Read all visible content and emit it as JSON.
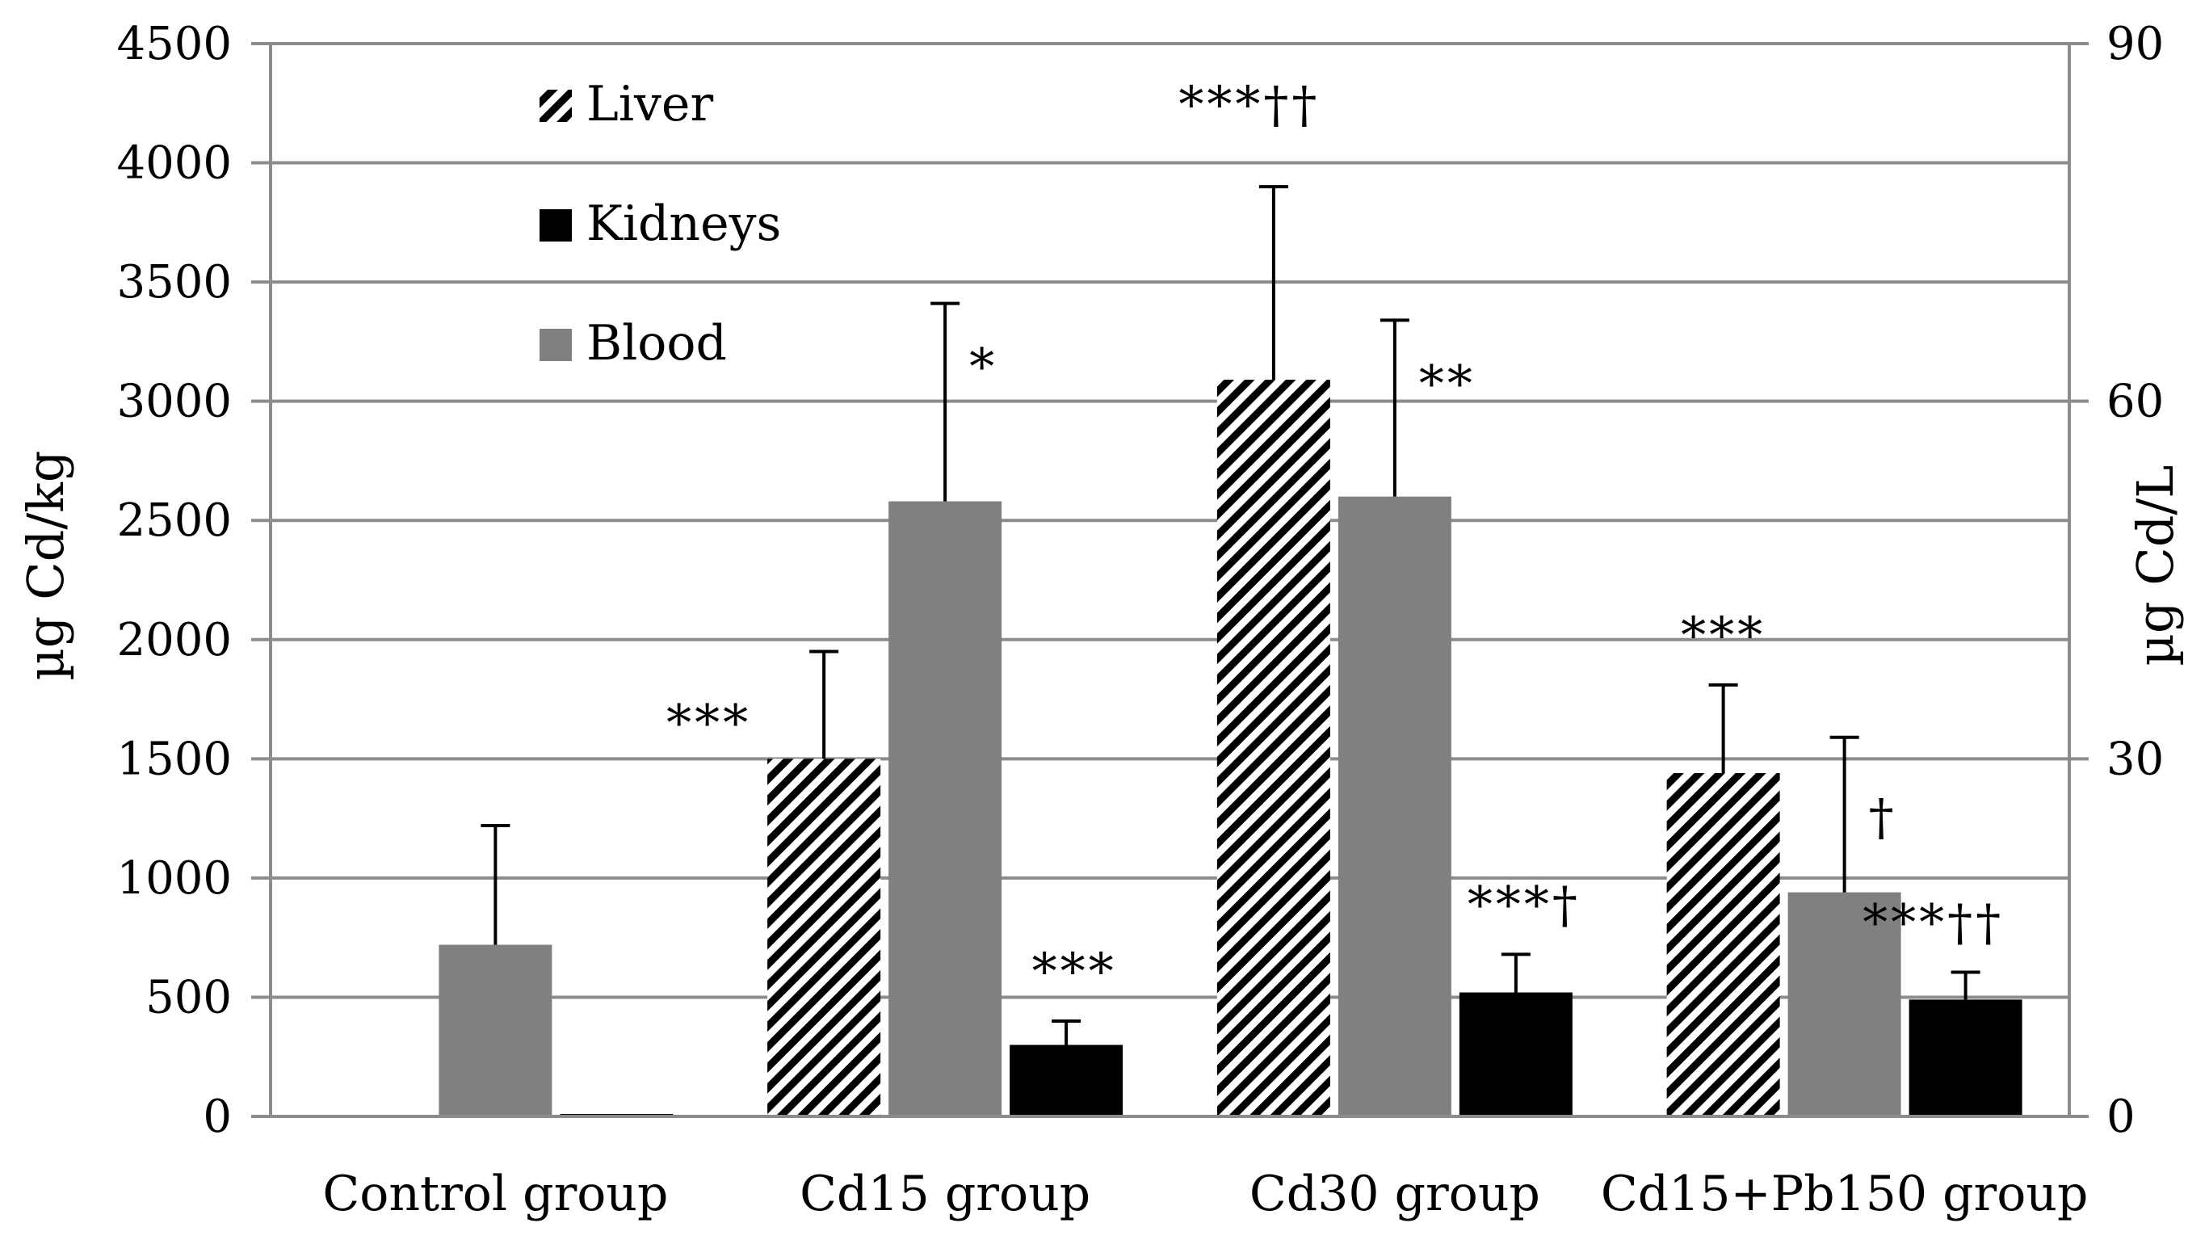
{
  "chart_data": {
    "type": "bar",
    "categories": [
      "Control group",
      "Cd15 group",
      "Cd30 group",
      "Cd15+Pb150 group"
    ],
    "ylabel": "µg Cd/kg",
    "y2label": "µg Cd/L",
    "ylim": [
      0,
      4500
    ],
    "y2lim": [
      0,
      90
    ],
    "yticks": [
      0,
      500,
      1000,
      1500,
      2000,
      2500,
      3000,
      3500,
      4000,
      4500
    ],
    "y2ticks": [
      0,
      30,
      60,
      90
    ],
    "grid": true,
    "legend": "top-left",
    "series": [
      {
        "name": "Liver",
        "axis": "left",
        "pattern": "diagonal-hatch",
        "color": "#000000",
        "values": [
          5,
          1500,
          3090,
          1440
        ],
        "errors": [
          0,
          450,
          810,
          370
        ]
      },
      {
        "name": "Blood",
        "axis": "right",
        "pattern": "solid",
        "color": "#808080",
        "values": [
          14.4,
          51.6,
          52.0,
          18.8
        ],
        "errors": [
          10.0,
          16.6,
          14.8,
          13.0
        ]
      },
      {
        "name": "Kidneys",
        "axis": "left",
        "pattern": "solid",
        "color": "#000000",
        "values": [
          10,
          300,
          520,
          490
        ],
        "errors": [
          0,
          100,
          160,
          115
        ]
      }
    ],
    "annotations": [
      {
        "series": "Liver",
        "category": 1,
        "text": "***"
      },
      {
        "series": "Blood",
        "category": 1,
        "text": "*"
      },
      {
        "series": "Kidneys",
        "category": 1,
        "text": "***"
      },
      {
        "series": "Liver",
        "category": 2,
        "text": "***††"
      },
      {
        "series": "Blood",
        "category": 2,
        "text": "**"
      },
      {
        "series": "Kidneys",
        "category": 2,
        "text": "***†"
      },
      {
        "series": "Liver",
        "category": 3,
        "text": "***"
      },
      {
        "series": "Blood",
        "category": 3,
        "text": "†"
      },
      {
        "series": "Kidneys",
        "category": 3,
        "text": "***††"
      }
    ],
    "legend_order": [
      "Liver",
      "Kidneys",
      "Blood"
    ]
  }
}
